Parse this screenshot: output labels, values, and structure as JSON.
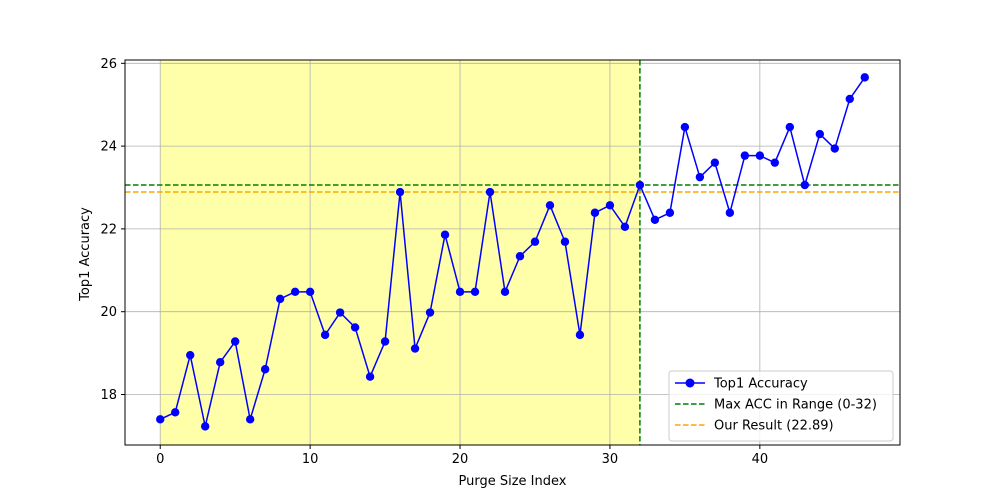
{
  "chart_data": {
    "type": "line",
    "title": "",
    "xlabel": "Purge Size Index",
    "ylabel": "Top1 Accuracy",
    "xlim": [
      -2.35,
      49.35
    ],
    "ylim": [
      16.78,
      26.08
    ],
    "xticks": [
      0,
      10,
      20,
      30,
      40
    ],
    "yticks": [
      18,
      20,
      22,
      24,
      26
    ],
    "grid": true,
    "legend_position": "lower-right",
    "highlight_range": {
      "x_from": 0,
      "x_to": 32,
      "color": "#ffffaa"
    },
    "series": [
      {
        "name": "Top1 Accuracy",
        "color": "#0000ff",
        "marker": "circle",
        "x": [
          0,
          1,
          2,
          3,
          4,
          5,
          6,
          7,
          8,
          9,
          10,
          11,
          12,
          13,
          14,
          15,
          16,
          17,
          18,
          19,
          20,
          21,
          22,
          23,
          24,
          25,
          26,
          27,
          28,
          29,
          30,
          31,
          32,
          33,
          34,
          35,
          36,
          37,
          38,
          39,
          40,
          41,
          42,
          43,
          44,
          45,
          46,
          47
        ],
        "values": [
          17.4,
          17.57,
          18.95,
          17.23,
          18.78,
          19.28,
          17.4,
          18.61,
          20.31,
          20.48,
          20.48,
          19.44,
          19.98,
          19.62,
          18.43,
          19.28,
          22.89,
          19.11,
          19.98,
          21.86,
          20.48,
          20.48,
          22.89,
          20.48,
          21.34,
          21.69,
          22.57,
          21.69,
          19.44,
          22.39,
          22.57,
          22.05,
          23.06,
          22.22,
          22.39,
          24.46,
          23.25,
          23.6,
          22.39,
          23.77,
          23.77,
          23.6,
          24.46,
          23.06,
          24.29,
          23.94,
          25.14,
          25.66
        ]
      }
    ],
    "reference_lines": [
      {
        "name": "Max ACC in Range (0-32)",
        "orientation": "both",
        "y": 23.06,
        "x": 32,
        "color": "#008000",
        "style": "dashed"
      },
      {
        "name": "Our Result (22.89)",
        "orientation": "horizontal",
        "y": 22.89,
        "color": "#ffa500",
        "style": "dashed"
      }
    ]
  }
}
